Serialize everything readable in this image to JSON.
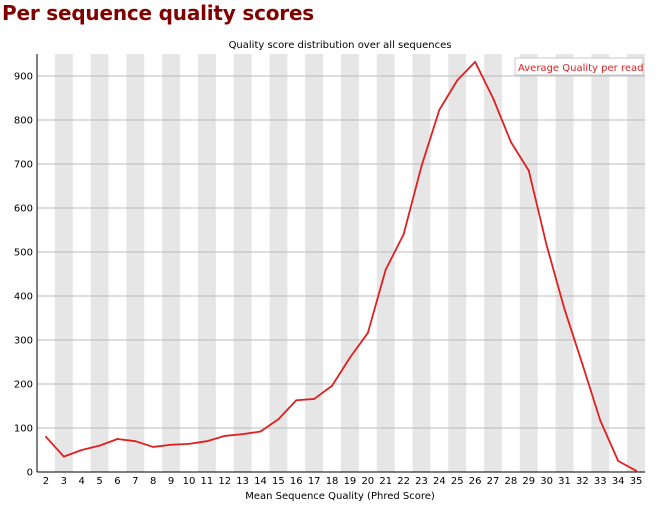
{
  "page": {
    "heading": "Per sequence quality scores"
  },
  "colors": {
    "heading": "#800000",
    "line": "#e02020",
    "band": "#e6e6e6",
    "grid": "#bbbbbb",
    "axis": "#000000"
  },
  "chart_data": {
    "type": "line",
    "title": "Quality score distribution over all sequences",
    "xlabel": "Mean Sequence Quality (Phred Score)",
    "ylabel": "",
    "categories": [
      "2",
      "3",
      "4",
      "5",
      "6",
      "7",
      "8",
      "9",
      "10",
      "11",
      "12",
      "13",
      "14",
      "15",
      "16",
      "17",
      "18",
      "19",
      "20",
      "21",
      "22",
      "23",
      "24",
      "25",
      "26",
      "27",
      "28",
      "29",
      "30",
      "31",
      "32",
      "33",
      "34",
      "35"
    ],
    "x": [
      2,
      3,
      4,
      5,
      6,
      7,
      8,
      9,
      10,
      11,
      12,
      13,
      14,
      15,
      16,
      17,
      18,
      19,
      20,
      21,
      22,
      23,
      24,
      25,
      26,
      27,
      28,
      29,
      30,
      31,
      32,
      33,
      34,
      35
    ],
    "ylim": [
      0,
      950
    ],
    "yticks": [
      "0",
      "100",
      "200",
      "300",
      "400",
      "500",
      "600",
      "700",
      "800",
      "900"
    ],
    "yticks_values": [
      0,
      100,
      200,
      300,
      400,
      500,
      600,
      700,
      800,
      900
    ],
    "grid": true,
    "alternating_bands": true,
    "legend": {
      "position": "top-right",
      "entries": [
        "Average Quality per read"
      ]
    },
    "series": [
      {
        "name": "Average Quality per read",
        "color": "#e02020",
        "values": [
          80,
          35,
          50,
          60,
          75,
          70,
          57,
          62,
          64,
          70,
          82,
          86,
          92,
          120,
          163,
          166,
          196,
          260,
          316,
          460,
          540,
          695,
          823,
          890,
          932,
          850,
          750,
          685,
          515,
          370,
          245,
          117,
          25,
          3
        ]
      }
    ]
  }
}
